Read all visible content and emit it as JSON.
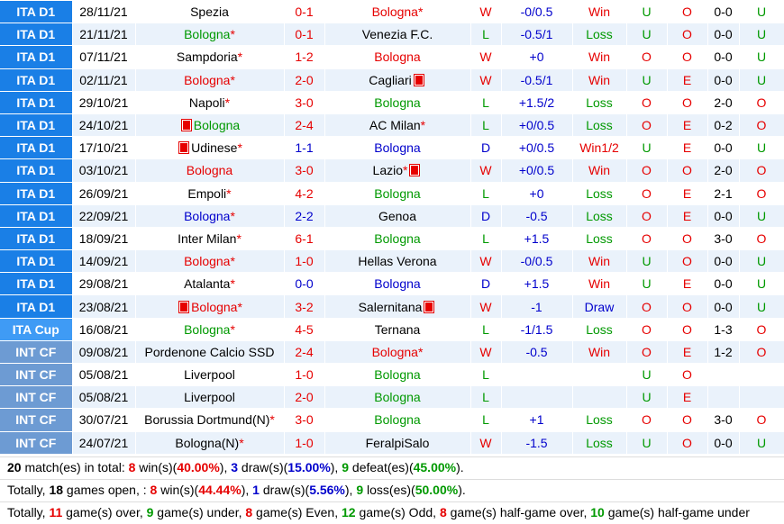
{
  "table": {
    "team": "Bologna",
    "league_colors": {
      "ITA D1": "#1a7fe6",
      "ITA Cup": "#3f9bf5",
      "INT CF": "#6d9bd3"
    },
    "result_colors": {
      "W": "#e60000",
      "L": "#009900",
      "D": "#0000cc",
      "Win": "#e60000",
      "Loss": "#009900",
      "Draw": "#0000cc",
      "Win1/2": "#e60000",
      "O": "#e60000",
      "U": "#009900",
      "E": "#e60000"
    },
    "score_colors": {
      "W": "#e60000",
      "L": "#e60000",
      "D": "#0000cc"
    },
    "rows": [
      {
        "league": "ITA D1",
        "date": "28/11/21",
        "home": {
          "name": "Spezia"
        },
        "score": "0-1",
        "away": {
          "name": "Bologna",
          "mark": "*"
        },
        "result": "W",
        "handicap": "-0/0.5",
        "hcp_result": "Win",
        "ou": "U",
        "oe": "O",
        "half": "0-0",
        "half_ou": "U"
      },
      {
        "league": "ITA D1",
        "date": "21/11/21",
        "home": {
          "name": "Bologna",
          "mark": "*"
        },
        "score": "0-1",
        "away": {
          "name": "Venezia F.C."
        },
        "result": "L",
        "handicap": "-0.5/1",
        "hcp_result": "Loss",
        "ou": "U",
        "oe": "O",
        "half": "0-0",
        "half_ou": "U"
      },
      {
        "league": "ITA D1",
        "date": "07/11/21",
        "home": {
          "name": "Sampdoria",
          "mark": "*"
        },
        "score": "1-2",
        "away": {
          "name": "Bologna"
        },
        "result": "W",
        "handicap": "+0",
        "hcp_result": "Win",
        "ou": "O",
        "oe": "O",
        "half": "0-0",
        "half_ou": "U"
      },
      {
        "league": "ITA D1",
        "date": "02/11/21",
        "home": {
          "name": "Bologna",
          "mark": "*"
        },
        "score": "2-0",
        "away": {
          "name": "Cagliari"
        },
        "result": "W",
        "handicap": "-0.5/1",
        "hcp_result": "Win",
        "ou": "U",
        "oe": "E",
        "half": "0-0",
        "half_ou": "U"
      },
      {
        "league": "ITA D1",
        "date": "29/10/21",
        "home": {
          "name": "Napoli",
          "mark": "*"
        },
        "score": "3-0",
        "away": {
          "name": "Bologna"
        },
        "result": "L",
        "handicap": "+1.5/2",
        "hcp_result": "Loss",
        "ou": "O",
        "oe": "O",
        "half": "2-0",
        "half_ou": "O"
      },
      {
        "league": "ITA D1",
        "date": "24/10/21",
        "home": {
          "name": "Bologna"
        },
        "score": "2-4",
        "away": {
          "name": "AC Milan",
          "mark": "*"
        },
        "result": "L",
        "handicap": "+0/0.5",
        "hcp_result": "Loss",
        "ou": "O",
        "oe": "E",
        "half": "0-2",
        "half_ou": "O"
      },
      {
        "league": "ITA D1",
        "date": "17/10/21",
        "home": {
          "name": "Udinese",
          "mark": "*"
        },
        "score": "1-1",
        "away": {
          "name": "Bologna"
        },
        "result": "D",
        "handicap": "+0/0.5",
        "hcp_result": "Win1/2",
        "ou": "U",
        "oe": "E",
        "half": "0-0",
        "half_ou": "U"
      },
      {
        "league": "ITA D1",
        "date": "03/10/21",
        "home": {
          "name": "Bologna"
        },
        "score": "3-0",
        "away": {
          "name": "Lazio",
          "mark": "*"
        },
        "result": "W",
        "handicap": "+0/0.5",
        "hcp_result": "Win",
        "ou": "O",
        "oe": "O",
        "half": "2-0",
        "half_ou": "O"
      },
      {
        "league": "ITA D1",
        "date": "26/09/21",
        "home": {
          "name": "Empoli",
          "mark": "*"
        },
        "score": "4-2",
        "away": {
          "name": "Bologna"
        },
        "result": "L",
        "handicap": "+0",
        "hcp_result": "Loss",
        "ou": "O",
        "oe": "E",
        "half": "2-1",
        "half_ou": "O"
      },
      {
        "league": "ITA D1",
        "date": "22/09/21",
        "home": {
          "name": "Bologna",
          "mark": "*"
        },
        "score": "2-2",
        "away": {
          "name": "Genoa"
        },
        "result": "D",
        "handicap": "-0.5",
        "hcp_result": "Loss",
        "ou": "O",
        "oe": "E",
        "half": "0-0",
        "half_ou": "U"
      },
      {
        "league": "ITA D1",
        "date": "18/09/21",
        "home": {
          "name": "Inter Milan",
          "mark": "*"
        },
        "score": "6-1",
        "away": {
          "name": "Bologna"
        },
        "result": "L",
        "handicap": "+1.5",
        "hcp_result": "Loss",
        "ou": "O",
        "oe": "O",
        "half": "3-0",
        "half_ou": "O"
      },
      {
        "league": "ITA D1",
        "date": "14/09/21",
        "home": {
          "name": "Bologna",
          "mark": "*"
        },
        "score": "1-0",
        "away": {
          "name": "Hellas Verona"
        },
        "result": "W",
        "handicap": "-0/0.5",
        "hcp_result": "Win",
        "ou": "U",
        "oe": "O",
        "half": "0-0",
        "half_ou": "U"
      },
      {
        "league": "ITA D1",
        "date": "29/08/21",
        "home": {
          "name": "Atalanta",
          "mark": "*"
        },
        "score": "0-0",
        "away": {
          "name": "Bologna"
        },
        "result": "D",
        "handicap": "+1.5",
        "hcp_result": "Win",
        "ou": "U",
        "oe": "E",
        "half": "0-0",
        "half_ou": "U"
      },
      {
        "league": "ITA D1",
        "date": "23/08/21",
        "home": {
          "name": "Bologna",
          "mark": "*"
        },
        "score": "3-2",
        "away": {
          "name": "Salernitana"
        },
        "result": "W",
        "handicap": "-1",
        "hcp_result": "Draw",
        "ou": "O",
        "oe": "O",
        "half": "0-0",
        "half_ou": "U"
      },
      {
        "league": "ITA Cup",
        "date": "16/08/21",
        "home": {
          "name": "Bologna",
          "mark": "*"
        },
        "score": "4-5",
        "away": {
          "name": "Ternana"
        },
        "result": "L",
        "handicap": "-1/1.5",
        "hcp_result": "Loss",
        "ou": "O",
        "oe": "O",
        "half": "1-3",
        "half_ou": "O"
      },
      {
        "league": "INT CF",
        "date": "09/08/21",
        "home": {
          "name": "Pordenone Calcio SSD"
        },
        "score": "2-4",
        "away": {
          "name": "Bologna",
          "mark": "*"
        },
        "result": "W",
        "handicap": "-0.5",
        "hcp_result": "Win",
        "ou": "O",
        "oe": "E",
        "half": "1-2",
        "half_ou": "O"
      },
      {
        "league": "INT CF",
        "date": "05/08/21",
        "home": {
          "name": "Liverpool"
        },
        "score": "1-0",
        "away": {
          "name": "Bologna"
        },
        "result": "L",
        "ou": "U",
        "oe": "O"
      },
      {
        "league": "INT CF",
        "date": "05/08/21",
        "home": {
          "name": "Liverpool"
        },
        "score": "2-0",
        "away": {
          "name": "Bologna"
        },
        "result": "L",
        "ou": "U",
        "oe": "E"
      },
      {
        "league": "INT CF",
        "date": "30/07/21",
        "home": {
          "name": "Borussia Dortmund(N)",
          "mark": "*"
        },
        "score": "3-0",
        "away": {
          "name": "Bologna"
        },
        "result": "L",
        "handicap": "+1",
        "hcp_result": "Loss",
        "ou": "O",
        "oe": "O",
        "half": "3-0",
        "half_ou": "O"
      },
      {
        "league": "INT CF",
        "date": "24/07/21",
        "home": {
          "name": "Bologna(N)",
          "mark": "*"
        },
        "score": "1-0",
        "away": {
          "name": "FeralpiSalo"
        },
        "result": "W",
        "handicap": "-1.5",
        "hcp_result": "Loss",
        "ou": "U",
        "oe": "O",
        "half": "0-0",
        "half_ou": "U"
      }
    ]
  },
  "summary": [
    [
      {
        "text": "20",
        "style": "bold"
      },
      {
        "text": " match(es) in total: "
      },
      {
        "text": "8",
        "style": "red"
      },
      {
        "text": " win(s)("
      },
      {
        "text": "40.00%",
        "style": "red"
      },
      {
        "text": "), "
      },
      {
        "text": "3",
        "style": "blue"
      },
      {
        "text": " draw(s)("
      },
      {
        "text": "15.00%",
        "style": "blue"
      },
      {
        "text": "), "
      },
      {
        "text": "9",
        "style": "green"
      },
      {
        "text": " defeat(es)("
      },
      {
        "text": "45.00%",
        "style": "green"
      },
      {
        "text": ")."
      }
    ],
    [
      {
        "text": "Totally, "
      },
      {
        "text": "18",
        "style": "bold"
      },
      {
        "text": " games open, : "
      },
      {
        "text": "8",
        "style": "red"
      },
      {
        "text": " win(s)("
      },
      {
        "text": "44.44%",
        "style": "red"
      },
      {
        "text": "), "
      },
      {
        "text": "1",
        "style": "blue"
      },
      {
        "text": " draw(s)("
      },
      {
        "text": "5.56%",
        "style": "blue"
      },
      {
        "text": "), "
      },
      {
        "text": "9",
        "style": "green"
      },
      {
        "text": " loss(es)("
      },
      {
        "text": "50.00%",
        "style": "green"
      },
      {
        "text": ")."
      }
    ],
    [
      {
        "text": "Totally, "
      },
      {
        "text": "11",
        "style": "red"
      },
      {
        "text": " game(s) over, "
      },
      {
        "text": "9",
        "style": "green"
      },
      {
        "text": " game(s) under, "
      },
      {
        "text": "8",
        "style": "red"
      },
      {
        "text": " game(s) Even, "
      },
      {
        "text": "12",
        "style": "green"
      },
      {
        "text": " game(s) Odd, "
      },
      {
        "text": "8",
        "style": "red"
      },
      {
        "text": " game(s) half-game over, "
      },
      {
        "text": "10",
        "style": "green"
      },
      {
        "text": " game(s) half-game under"
      }
    ]
  ]
}
